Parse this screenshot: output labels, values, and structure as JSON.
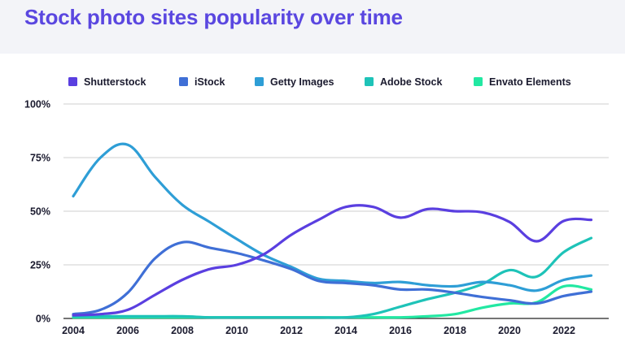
{
  "header": {
    "title": "Stock photo sites popularity over time"
  },
  "chart_data": {
    "type": "line",
    "title": "Stock photo sites popularity over time",
    "xlabel": "",
    "ylabel": "",
    "xlim": [
      2004,
      2023
    ],
    "ylim": [
      0,
      100
    ],
    "x_ticks": [
      2004,
      2006,
      2008,
      2010,
      2012,
      2014,
      2016,
      2018,
      2020,
      2022
    ],
    "x_tick_labels": [
      "2004",
      "2006",
      "2008",
      "2010",
      "2012",
      "2014",
      "2016",
      "2018",
      "2020",
      "2022"
    ],
    "y_ticks": [
      0,
      25,
      50,
      75,
      100
    ],
    "y_tick_labels": [
      "0%",
      "25%",
      "50%",
      "75%",
      "100%"
    ],
    "grid": "horizontal",
    "legend_position": "top",
    "x": [
      2004,
      2005,
      2006,
      2007,
      2008,
      2009,
      2010,
      2011,
      2012,
      2013,
      2014,
      2015,
      2016,
      2017,
      2018,
      2019,
      2020,
      2021,
      2022,
      2023
    ],
    "series": [
      {
        "name": "Shutterstock",
        "color": "#5a3fe0",
        "values": [
          1.5,
          2,
          4,
          11,
          18,
          23,
          25,
          30,
          39,
          46,
          52,
          52,
          47,
          51,
          50,
          49.5,
          45,
          36,
          45.5,
          46
        ]
      },
      {
        "name": "iStock",
        "color": "#3f6fd6",
        "values": [
          2,
          4,
          12,
          28,
          35.5,
          33,
          30.5,
          27,
          23,
          17.5,
          16.5,
          15.5,
          13.5,
          13.5,
          12,
          10,
          8.5,
          7,
          10.5,
          12.5
        ]
      },
      {
        "name": "Getty Images",
        "color": "#2e9ed6",
        "values": [
          57,
          75,
          81,
          66,
          53,
          45,
          37,
          29.5,
          24,
          18.5,
          17.5,
          16.5,
          17,
          15.5,
          15,
          17,
          15.5,
          13,
          18,
          20
        ]
      },
      {
        "name": "Adobe Stock",
        "color": "#1ec3b8",
        "values": [
          1,
          1,
          1,
          1,
          1,
          0.5,
          0.5,
          0.5,
          0.5,
          0.5,
          0.5,
          2,
          5.5,
          9,
          12,
          16,
          22.5,
          19.5,
          31,
          37.5
        ]
      },
      {
        "name": "Envato Elements",
        "color": "#22e8a2",
        "values": [
          0.5,
          0.5,
          0.5,
          0.5,
          0.5,
          0.5,
          0.5,
          0.5,
          0.5,
          0.5,
          0.5,
          0.5,
          0.5,
          1,
          2,
          5,
          7,
          7.5,
          15,
          13.5
        ]
      }
    ]
  }
}
